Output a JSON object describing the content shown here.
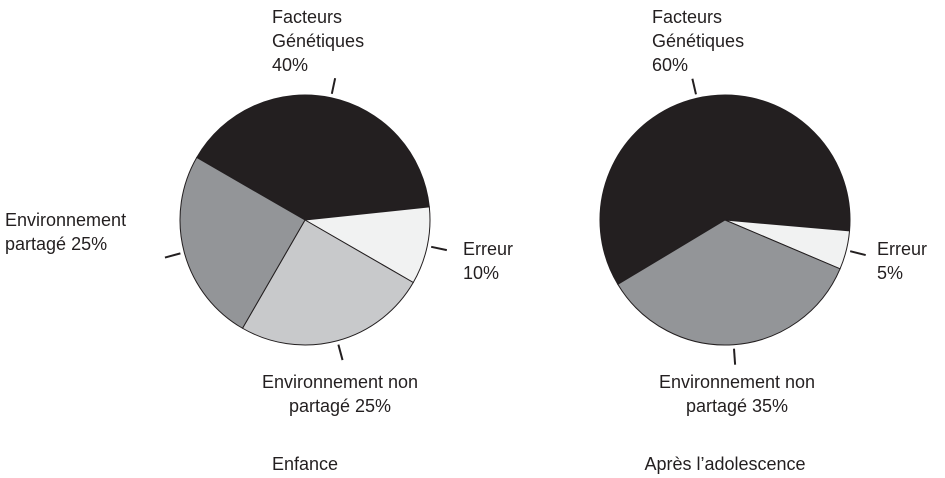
{
  "chart_data": [
    {
      "type": "pie",
      "title": "Enfance",
      "categories": [
        "Facteurs Génétiques",
        "Erreur",
        "Environnement non partagé",
        "Environnement partagé"
      ],
      "values": [
        40,
        10,
        25,
        25
      ],
      "value_labels": [
        "40%",
        "10%",
        "25%",
        "25%"
      ],
      "colors": [
        "#231f20",
        "#f1f2f2",
        "#c8c9cb",
        "#939598"
      ]
    },
    {
      "type": "pie",
      "title": "Après l’adolescence",
      "categories": [
        "Facteurs Génétiques",
        "Erreur",
        "Environnement non partagé"
      ],
      "values": [
        60,
        5,
        35
      ],
      "value_labels": [
        "60%",
        "5%",
        "35%"
      ],
      "colors": [
        "#231f20",
        "#f1f2f2",
        "#939598"
      ]
    }
  ]
}
